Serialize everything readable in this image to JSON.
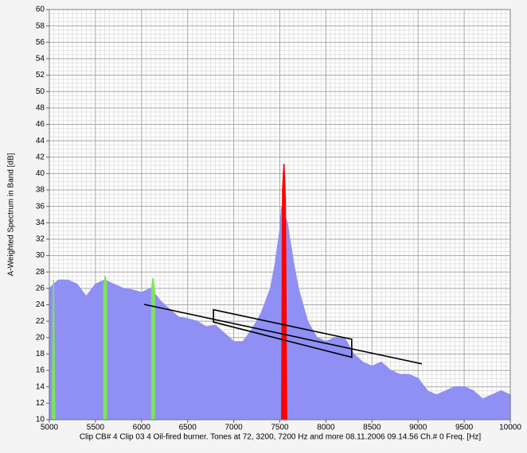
{
  "chart_data": {
    "type": "area",
    "ylabel": "A-Weighted Spectrum in Band [dB]",
    "xlabel": "Clip  CB# 4 Clip 03 4 Oil-fired burner. Tones at 72, 3200, 7200 Hz and more  08.11.2006  09.14.56  Ch.# 0  Freq.  [Hz]",
    "xlim": [
      5000,
      10000
    ],
    "xticks": [
      5000,
      5500,
      6000,
      6500,
      7000,
      7500,
      8000,
      8500,
      9000,
      9500,
      10000
    ],
    "ylim": [
      10,
      60
    ],
    "yticks": [
      10,
      12,
      14,
      16,
      18,
      20,
      22,
      24,
      26,
      28,
      30,
      32,
      34,
      36,
      38,
      40,
      42,
      44,
      46,
      48,
      50,
      52,
      54,
      56,
      58,
      60
    ],
    "grid": true,
    "minor_grid": true,
    "series": [
      {
        "color": "#8f8ff4",
        "x": [
          5000,
          5100,
          5200,
          5300,
          5400,
          5500,
          5600,
          5700,
          5800,
          5900,
          6000,
          6100,
          6200,
          6300,
          6400,
          6500,
          6600,
          6700,
          6800,
          6900,
          7000,
          7100,
          7200,
          7300,
          7400,
          7450,
          7500,
          7520,
          7580,
          7600,
          7650,
          7700,
          7800,
          7900,
          8000,
          8100,
          8200,
          8300,
          8400,
          8500,
          8600,
          8700,
          8800,
          8900,
          9000,
          9100,
          9200,
          9300,
          9400,
          9500,
          9600,
          9700,
          9800,
          9900,
          10000
        ],
        "values": [
          26,
          27,
          27,
          26.5,
          25,
          26.5,
          27,
          26.5,
          26,
          25.8,
          25.5,
          26,
          24.5,
          23.5,
          22.5,
          22.3,
          22,
          21.3,
          21.5,
          20.5,
          19.5,
          19.5,
          21,
          23,
          26,
          29,
          33,
          36,
          34,
          32.5,
          29,
          26,
          22,
          20,
          19.5,
          20,
          20,
          18,
          17,
          16.5,
          17,
          16,
          15.5,
          15.5,
          15,
          13.5,
          13,
          13.5,
          14,
          14,
          13.5,
          12.5,
          13,
          13.5,
          13
        ]
      },
      {
        "color": "#ff0000",
        "x": [
          7520,
          7530,
          7545,
          7560,
          7575
        ],
        "values": [
          10,
          38,
          41.2,
          37,
          10
        ]
      },
      {
        "color": "#7ee35a",
        "x": [
          5030,
          5045,
          5060
        ],
        "values": [
          10,
          27,
          10
        ]
      },
      {
        "color": "#7ee35a",
        "x": [
          5590,
          5605,
          5620
        ],
        "values": [
          26.2,
          27.5,
          26.6
        ]
      },
      {
        "color": "#7ee35a",
        "x": [
          6110,
          6125,
          6140
        ],
        "values": [
          25.8,
          27.3,
          25.6
        ]
      }
    ],
    "lines": [
      {
        "color": "#000000",
        "x": [
          6028,
          9041
        ],
        "y": [
          24.05,
          16.8
        ]
      },
      {
        "color": "#000000",
        "closed": true,
        "x": [
          6780,
          8280,
          8280,
          6780
        ],
        "y": [
          23.4,
          19.8,
          17.6,
          21.9
        ]
      }
    ]
  }
}
